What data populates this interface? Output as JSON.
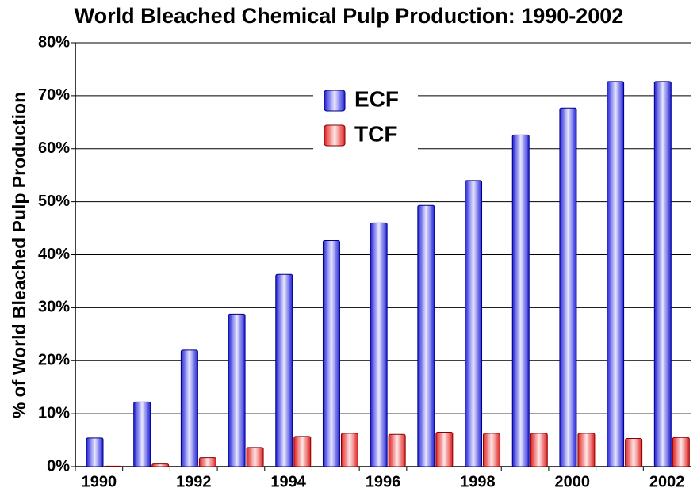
{
  "chart_data": {
    "type": "bar",
    "title": "World Bleached Chemical Pulp Production: 1990-2002",
    "y_label": "% of World Bleached  Pulp Production",
    "categories": [
      "1990",
      null,
      "1992",
      null,
      "1994",
      null,
      "1996",
      null,
      "1998",
      null,
      "2000",
      null,
      "2002"
    ],
    "series": [
      {
        "name": "ECF",
        "color": "#3b3bf0",
        "values": [
          5.4,
          12.2,
          22,
          28.8,
          36.3,
          42.7,
          46,
          49.3,
          54,
          62.6,
          67.7,
          72.7,
          72.7
        ]
      },
      {
        "name": "TCF",
        "color": "#f03b3b",
        "values": [
          0.1,
          0.5,
          1.7,
          3.6,
          5.7,
          6.3,
          6.1,
          6.5,
          6.3,
          6.3,
          6.3,
          5.3,
          5.5
        ]
      }
    ],
    "ylim": [
      0,
      80
    ],
    "yticks": [
      {
        "value": 0,
        "label": "0%"
      },
      {
        "value": 10,
        "label": "10%"
      },
      {
        "value": 20,
        "label": "20%"
      },
      {
        "value": 30,
        "label": "30%"
      },
      {
        "value": 40,
        "label": "40%"
      },
      {
        "value": 50,
        "label": "50%"
      },
      {
        "value": 60,
        "label": "60%"
      },
      {
        "value": 70,
        "label": "70%"
      },
      {
        "value": 80,
        "label": "80%"
      }
    ],
    "grid": true,
    "legend": "top"
  }
}
